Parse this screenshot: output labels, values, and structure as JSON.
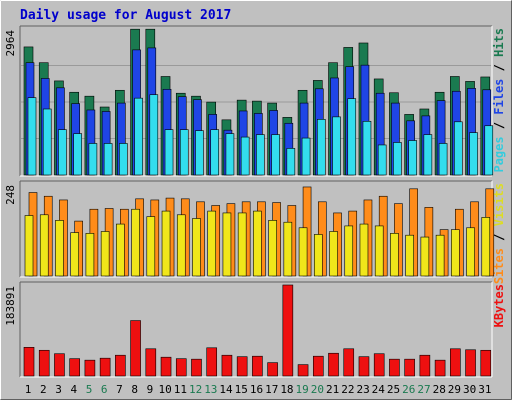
{
  "chart_data": {
    "type": "bar",
    "title": "Daily usage for August 2017",
    "categories": [
      "1",
      "2",
      "3",
      "4",
      "5",
      "6",
      "7",
      "8",
      "9",
      "10",
      "11",
      "12",
      "13",
      "14",
      "15",
      "16",
      "17",
      "18",
      "19",
      "20",
      "21",
      "22",
      "23",
      "24",
      "25",
      "26",
      "27",
      "28",
      "29",
      "30",
      "31"
    ],
    "weekend_days": [
      "5",
      "6",
      "12",
      "13",
      "19",
      "20",
      "26",
      "27"
    ],
    "colors": {
      "background": "#c0c0c0",
      "frame": "#808080",
      "title": "#0000cc",
      "hits": "#1a7a50",
      "files": "#1f45e6",
      "pages": "#33ddee",
      "visits": "#f0e61a",
      "sites": "#ff8c1a",
      "kbytes": "#ee1010",
      "weekday_label": "#000000",
      "weekend_label": "#1a7a50",
      "slash": "#000000"
    },
    "panels": [
      {
        "name": "hits-files-pages",
        "max_label": "2964",
        "ymax": 2964,
        "legend": [
          {
            "text": "Pages",
            "color": "#33ccdd"
          },
          {
            "text": " / ",
            "color": "#000000"
          },
          {
            "text": "Files",
            "color": "#1f45e6"
          },
          {
            "text": " / ",
            "color": "#000000"
          },
          {
            "text": "Hits",
            "color": "#1a7a50"
          }
        ],
        "series": [
          {
            "name": "Hits",
            "values": [
              2600,
              2280,
              1910,
              1680,
              1600,
              1380,
              1720,
              2960,
              2960,
              2000,
              1660,
              1600,
              1480,
              1120,
              1520,
              1500,
              1460,
              1170,
              1720,
              1920,
              2280,
              2590,
              2680,
              1950,
              1670,
              1230,
              1340,
              1680,
              2000,
              1900,
              1990
            ]
          },
          {
            "name": "Files",
            "values": [
              2280,
              1960,
              1770,
              1450,
              1320,
              1290,
              1460,
              2540,
              2580,
              1740,
              1590,
              1530,
              1230,
              910,
              1300,
              1250,
              1310,
              1050,
              1460,
              1750,
              1970,
              2200,
              2230,
              1660,
              1460,
              1100,
              1200,
              1510,
              1700,
              1760,
              1730
            ]
          },
          {
            "name": "Pages",
            "values": [
              1570,
              1340,
              920,
              840,
              640,
              640,
              640,
              1560,
              1630,
              920,
              920,
              900,
              920,
              840,
              770,
              820,
              820,
              540,
              750,
              1130,
              1180,
              1550,
              1090,
              610,
              660,
              700,
              820,
              640,
              1080,
              860,
              1000
            ]
          }
        ]
      },
      {
        "name": "visits-sites",
        "max_label": "248",
        "ymax": 248,
        "legend": [
          {
            "text": "Sites",
            "color": "#ff8c1a"
          },
          {
            "text": " / ",
            "color": "#000000"
          },
          {
            "text": "Visits",
            "color": "#dddd22"
          }
        ],
        "series": [
          {
            "name": "Sites",
            "values": [
              225,
              215,
              205,
              148,
              180,
              182,
              180,
              208,
              205,
              210,
              208,
              200,
              190,
              195,
              200,
              200,
              198,
              190,
              240,
              200,
              170,
              175,
              205,
              215,
              195,
              235,
              185,
              125,
              180,
              200,
              235
            ]
          },
          {
            "name": "Visits",
            "values": [
              163,
              165,
              150,
              117,
              115,
              120,
              140,
              180,
              160,
              175,
              165,
              155,
              175,
              170,
              170,
              175,
              150,
              145,
              130,
              112,
              120,
              135,
              140,
              135,
              115,
              110,
              105,
              110,
              125,
              130,
              158
            ]
          }
        ]
      },
      {
        "name": "kbytes",
        "max_label": "183891",
        "ymax": 183891,
        "legend": [
          {
            "text": "KBytes",
            "color": "#ee1010"
          }
        ],
        "series": [
          {
            "name": "KBytes",
            "values": [
              58000,
              52000,
              45000,
              35000,
              32000,
              36000,
              42000,
              112000,
              55000,
              38000,
              35000,
              34000,
              57000,
              42000,
              39000,
              40000,
              27000,
              183891,
              23000,
              40000,
              46000,
              55000,
              39000,
              45000,
              34000,
              34000,
              42000,
              32000,
              55000,
              53000,
              52000
            ]
          }
        ]
      }
    ]
  }
}
